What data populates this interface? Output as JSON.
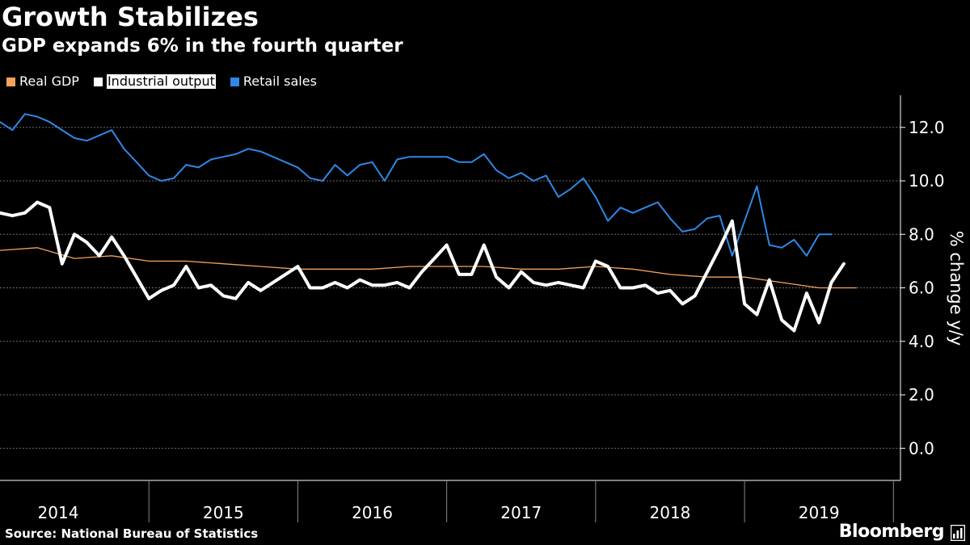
{
  "header": {
    "title": "Growth Stabilizes",
    "subtitle": "GDP expands 6% in the fourth quarter"
  },
  "footer": {
    "source": "Source: National Bureau of Statistics",
    "brand": "Bloomberg"
  },
  "colors": {
    "background": "#000000",
    "gdp": "#f5a25d",
    "industrial": "#ffffff",
    "retail": "#2f87e6",
    "grid": "#6e6e6e",
    "axis": "#ffffff"
  },
  "icons": {
    "brand_mark": "bloomberg-terminal-icon"
  },
  "chart_data": {
    "type": "line",
    "title": "Growth Stabilizes",
    "subtitle": "GDP expands 6% in the fourth quarter",
    "ylabel": "% change y/y",
    "xlabel": "",
    "ylim": [
      -1.2,
      13.2
    ],
    "y_ticks": [
      "0.0",
      "2.0",
      "4.0",
      "6.0",
      "8.0",
      "10.0",
      "12.0"
    ],
    "x_tick_labels": [
      "2014",
      "2015",
      "2016",
      "2017",
      "2018",
      "2019"
    ],
    "grid": true,
    "legend_position": "top-left",
    "x_range": [
      2014.0,
      2019.917
    ],
    "series": [
      {
        "name": "Real GDP",
        "key": "gdp",
        "highlighted": false,
        "points": [
          [
            2014.0,
            7.4
          ],
          [
            2014.25,
            7.5
          ],
          [
            2014.5,
            7.1
          ],
          [
            2014.75,
            7.2
          ],
          [
            2015.0,
            7.0
          ],
          [
            2015.25,
            7.0
          ],
          [
            2015.5,
            6.9
          ],
          [
            2015.75,
            6.8
          ],
          [
            2016.0,
            6.7
          ],
          [
            2016.25,
            6.7
          ],
          [
            2016.5,
            6.7
          ],
          [
            2016.75,
            6.8
          ],
          [
            2017.0,
            6.8
          ],
          [
            2017.25,
            6.8
          ],
          [
            2017.5,
            6.7
          ],
          [
            2017.75,
            6.7
          ],
          [
            2018.0,
            6.8
          ],
          [
            2018.25,
            6.7
          ],
          [
            2018.5,
            6.5
          ],
          [
            2018.75,
            6.4
          ],
          [
            2019.0,
            6.4
          ],
          [
            2019.25,
            6.2
          ],
          [
            2019.5,
            6.0
          ],
          [
            2019.75,
            6.0
          ]
        ]
      },
      {
        "name": "Industrial output",
        "key": "industrial",
        "highlighted": true,
        "points": [
          [
            2014.0,
            8.8
          ],
          [
            2014.083,
            8.7
          ],
          [
            2014.167,
            8.8
          ],
          [
            2014.25,
            9.2
          ],
          [
            2014.333,
            9.0
          ],
          [
            2014.417,
            6.9
          ],
          [
            2014.5,
            8.0
          ],
          [
            2014.583,
            7.7
          ],
          [
            2014.667,
            7.2
          ],
          [
            2014.75,
            7.9
          ],
          [
            2014.833,
            7.2
          ],
          [
            2014.917,
            6.4
          ],
          [
            2015.0,
            5.6
          ],
          [
            2015.083,
            5.9
          ],
          [
            2015.167,
            6.1
          ],
          [
            2015.25,
            6.8
          ],
          [
            2015.333,
            6.0
          ],
          [
            2015.417,
            6.1
          ],
          [
            2015.5,
            5.7
          ],
          [
            2015.583,
            5.6
          ],
          [
            2015.667,
            6.2
          ],
          [
            2015.75,
            5.9
          ],
          [
            2015.833,
            6.2
          ],
          [
            2015.917,
            6.5
          ],
          [
            2016.0,
            6.8
          ],
          [
            2016.083,
            6.0
          ],
          [
            2016.167,
            6.0
          ],
          [
            2016.25,
            6.2
          ],
          [
            2016.333,
            6.0
          ],
          [
            2016.417,
            6.3
          ],
          [
            2016.5,
            6.1
          ],
          [
            2016.583,
            6.1
          ],
          [
            2016.667,
            6.2
          ],
          [
            2016.75,
            6.0
          ],
          [
            2016.833,
            6.6
          ],
          [
            2016.917,
            7.1
          ],
          [
            2017.0,
            7.6
          ],
          [
            2017.083,
            6.5
          ],
          [
            2017.167,
            6.5
          ],
          [
            2017.25,
            7.6
          ],
          [
            2017.333,
            6.4
          ],
          [
            2017.417,
            6.0
          ],
          [
            2017.5,
            6.6
          ],
          [
            2017.583,
            6.2
          ],
          [
            2017.667,
            6.1
          ],
          [
            2017.75,
            6.2
          ],
          [
            2017.833,
            6.1
          ],
          [
            2017.917,
            6.0
          ],
          [
            2018.0,
            7.0
          ],
          [
            2018.083,
            6.8
          ],
          [
            2018.167,
            6.0
          ],
          [
            2018.25,
            6.0
          ],
          [
            2018.333,
            6.1
          ],
          [
            2018.417,
            5.8
          ],
          [
            2018.5,
            5.9
          ],
          [
            2018.583,
            5.4
          ],
          [
            2018.667,
            5.7
          ],
          [
            2018.75,
            6.6
          ],
          [
            2018.833,
            7.5
          ],
          [
            2018.917,
            8.5
          ],
          [
            2019.0,
            5.4
          ],
          [
            2019.083,
            5.0
          ],
          [
            2019.167,
            6.3
          ],
          [
            2019.25,
            4.8
          ],
          [
            2019.333,
            4.4
          ],
          [
            2019.417,
            5.8
          ],
          [
            2019.5,
            4.7
          ],
          [
            2019.583,
            6.2
          ],
          [
            2019.667,
            6.9
          ]
        ]
      },
      {
        "name": "Retail sales",
        "key": "retail",
        "highlighted": false,
        "points": [
          [
            2014.0,
            12.2
          ],
          [
            2014.083,
            11.9
          ],
          [
            2014.167,
            12.5
          ],
          [
            2014.25,
            12.4
          ],
          [
            2014.333,
            12.2
          ],
          [
            2014.417,
            11.9
          ],
          [
            2014.5,
            11.6
          ],
          [
            2014.583,
            11.5
          ],
          [
            2014.667,
            11.7
          ],
          [
            2014.75,
            11.9
          ],
          [
            2014.833,
            11.2
          ],
          [
            2014.917,
            10.7
          ],
          [
            2015.0,
            10.2
          ],
          [
            2015.083,
            10.0
          ],
          [
            2015.167,
            10.1
          ],
          [
            2015.25,
            10.6
          ],
          [
            2015.333,
            10.5
          ],
          [
            2015.417,
            10.8
          ],
          [
            2015.5,
            10.9
          ],
          [
            2015.583,
            11.0
          ],
          [
            2015.667,
            11.2
          ],
          [
            2015.75,
            11.1
          ],
          [
            2015.833,
            10.9
          ],
          [
            2015.917,
            10.7
          ],
          [
            2016.0,
            10.5
          ],
          [
            2016.083,
            10.1
          ],
          [
            2016.167,
            10.0
          ],
          [
            2016.25,
            10.6
          ],
          [
            2016.333,
            10.2
          ],
          [
            2016.417,
            10.6
          ],
          [
            2016.5,
            10.7
          ],
          [
            2016.583,
            10.0
          ],
          [
            2016.667,
            10.8
          ],
          [
            2016.75,
            10.9
          ],
          [
            2016.833,
            10.9
          ],
          [
            2016.917,
            10.9
          ],
          [
            2017.0,
            10.9
          ],
          [
            2017.083,
            10.7
          ],
          [
            2017.167,
            10.7
          ],
          [
            2017.25,
            11.0
          ],
          [
            2017.333,
            10.4
          ],
          [
            2017.417,
            10.1
          ],
          [
            2017.5,
            10.3
          ],
          [
            2017.583,
            10.0
          ],
          [
            2017.667,
            10.2
          ],
          [
            2017.75,
            9.4
          ],
          [
            2017.833,
            9.7
          ],
          [
            2017.917,
            10.1
          ],
          [
            2018.0,
            9.4
          ],
          [
            2018.083,
            8.5
          ],
          [
            2018.167,
            9.0
          ],
          [
            2018.25,
            8.8
          ],
          [
            2018.333,
            9.0
          ],
          [
            2018.417,
            9.2
          ],
          [
            2018.5,
            8.6
          ],
          [
            2018.583,
            8.1
          ],
          [
            2018.667,
            8.2
          ],
          [
            2018.75,
            8.6
          ],
          [
            2018.833,
            8.7
          ],
          [
            2018.917,
            7.2
          ],
          [
            2019.0,
            8.5
          ],
          [
            2019.083,
            9.8
          ],
          [
            2019.167,
            7.6
          ],
          [
            2019.25,
            7.5
          ],
          [
            2019.333,
            7.8
          ],
          [
            2019.417,
            7.2
          ],
          [
            2019.5,
            8.0
          ],
          [
            2019.583,
            8.0
          ]
        ]
      }
    ]
  }
}
